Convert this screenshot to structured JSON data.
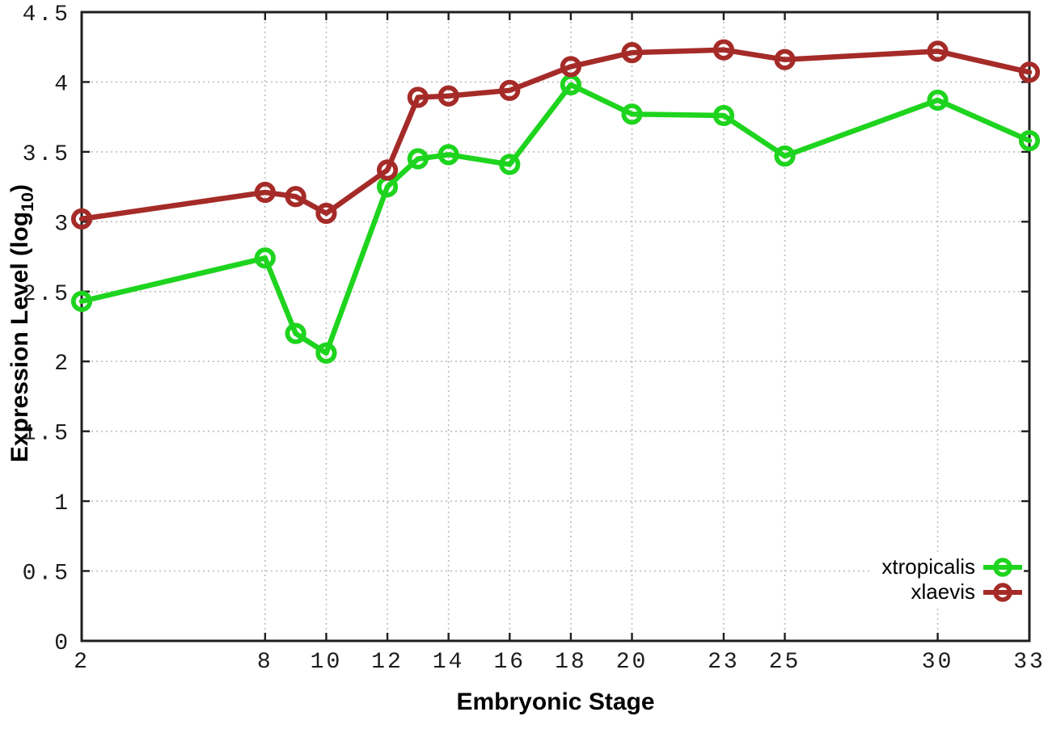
{
  "chart_data": {
    "type": "line",
    "title": "",
    "xlabel": "Embryonic Stage",
    "ylabel_pre": "Expression Level (log",
    "ylabel_sub": "10",
    "ylabel_post": ")",
    "x": [
      2,
      8,
      9,
      10,
      12,
      13,
      14,
      16,
      18,
      20,
      23,
      25,
      30,
      33
    ],
    "xticks": [
      2,
      8,
      10,
      12,
      14,
      16,
      18,
      20,
      23,
      25,
      30,
      33
    ],
    "yticks": [
      0,
      0.5,
      1,
      1.5,
      2,
      2.5,
      3,
      3.5,
      4,
      4.5
    ],
    "xlim": [
      2,
      33
    ],
    "ylim": [
      0,
      4.5
    ],
    "grid": true,
    "legend_position": "bottom-right",
    "series": [
      {
        "name": "xtropicalis",
        "color": "#1ed41e",
        "marker": "open-circle",
        "values": [
          2.43,
          2.74,
          2.2,
          2.06,
          3.25,
          3.45,
          3.48,
          3.41,
          3.98,
          3.77,
          3.76,
          3.47,
          3.87,
          3.58
        ]
      },
      {
        "name": "xlaevis",
        "color": "#a52b28",
        "marker": "open-circle",
        "values": [
          3.02,
          3.21,
          3.18,
          3.06,
          3.37,
          3.89,
          3.9,
          3.94,
          4.11,
          4.21,
          4.23,
          4.16,
          4.22,
          4.07
        ]
      }
    ],
    "colors": {
      "background": "#ffffff",
      "axis": "#1f1f1f",
      "gridline": "#bdbdbd",
      "tick_text": "#1c1c1c"
    }
  }
}
